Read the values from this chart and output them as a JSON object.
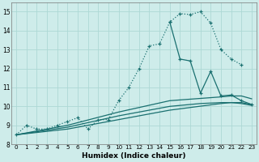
{
  "bg_color": "#ceecea",
  "grid_color": "#add8d5",
  "line_color": "#1a7070",
  "xlabel": "Humidex (Indice chaleur)",
  "ylim": [
    8,
    15.5
  ],
  "xlim": [
    -0.5,
    23.5
  ],
  "yticks": [
    8,
    9,
    10,
    11,
    12,
    13,
    14,
    15
  ],
  "xticks": [
    0,
    1,
    2,
    3,
    4,
    5,
    6,
    7,
    8,
    9,
    10,
    11,
    12,
    13,
    14,
    15,
    16,
    17,
    18,
    19,
    20,
    21,
    22,
    23
  ],
  "curve_main_x": [
    0,
    1,
    2,
    3,
    4,
    5,
    6,
    7,
    8,
    9,
    10,
    11,
    12,
    13,
    14,
    15,
    16,
    17,
    18,
    19,
    20,
    21,
    22
  ],
  "curve_main_y": [
    8.5,
    9.0,
    8.8,
    8.8,
    9.0,
    9.2,
    9.4,
    8.8,
    9.3,
    9.3,
    10.3,
    11.0,
    12.0,
    13.2,
    13.3,
    14.45,
    14.9,
    14.85,
    15.0,
    14.4,
    13.0,
    12.5,
    12.2
  ],
  "curve_jagged_x": [
    15,
    16,
    17,
    18,
    19,
    20,
    21,
    22,
    23
  ],
  "curve_jagged_y": [
    14.45,
    12.5,
    12.4,
    10.7,
    11.85,
    10.55,
    10.6,
    10.3,
    10.1
  ],
  "curve_upper_x": [
    0,
    5,
    10,
    15,
    20,
    21,
    22,
    23
  ],
  "curve_upper_y": [
    8.5,
    9.0,
    9.7,
    10.3,
    10.5,
    10.55,
    10.55,
    10.4
  ],
  "curve_lower_x": [
    0,
    5,
    10,
    15,
    20,
    21,
    22,
    23
  ],
  "curve_lower_y": [
    8.5,
    8.8,
    9.3,
    9.8,
    10.15,
    10.2,
    10.2,
    10.1
  ],
  "curve_third_x": [
    0,
    5,
    10,
    15,
    18,
    20,
    21,
    22,
    23
  ],
  "curve_third_y": [
    8.5,
    8.9,
    9.5,
    10.0,
    10.15,
    10.2,
    10.2,
    10.15,
    10.05
  ]
}
